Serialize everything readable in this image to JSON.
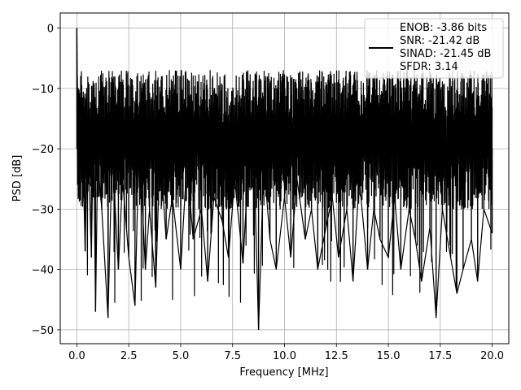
{
  "chart_data": {
    "type": "line",
    "title": "",
    "xlabel": "Frequency [MHz]",
    "ylabel": "PSD [dB]",
    "xlim": [
      -0.8,
      20.8
    ],
    "ylim": [
      -52.3,
      2.5
    ],
    "xticks": [
      0.0,
      2.5,
      5.0,
      7.5,
      10.0,
      12.5,
      15.0,
      17.5,
      20.0
    ],
    "xtick_labels": [
      "0.0",
      "2.5",
      "5.0",
      "7.5",
      "10.0",
      "12.5",
      "15.0",
      "17.5",
      "20.0"
    ],
    "yticks": [
      0,
      -10,
      -20,
      -30,
      -40,
      -50
    ],
    "ytick_labels": [
      "0",
      "−10",
      "−20",
      "−30",
      "−40",
      "−50"
    ],
    "grid": true,
    "legend_placement": "top-right",
    "series": [
      {
        "name": "ENOB: -3.86 bits\nSNR: -21.42 dB\nSINAD: -21.45 dB\nSFDR: 3.14",
        "color": "#000000",
        "x": [
          0.0,
          0.02,
          0.05,
          0.1,
          0.15,
          0.2,
          0.3,
          0.4,
          0.5,
          0.6,
          0.7,
          0.8,
          0.9,
          1.0,
          1.2,
          1.5,
          1.7,
          2.0,
          2.2,
          2.5,
          2.8,
          3.0,
          3.3,
          3.5,
          3.8,
          4.0,
          4.3,
          4.6,
          5.0,
          5.3,
          5.6,
          6.0,
          6.3,
          6.6,
          7.0,
          7.3,
          7.6,
          8.0,
          8.3,
          8.6,
          8.75,
          9.0,
          9.3,
          9.6,
          10.0,
          10.3,
          10.6,
          11.0,
          11.3,
          11.6,
          12.0,
          12.3,
          12.6,
          13.0,
          13.3,
          13.6,
          14.0,
          14.3,
          14.6,
          15.0,
          15.3,
          15.6,
          16.0,
          16.3,
          16.6,
          17.0,
          17.3,
          17.6,
          18.0,
          18.3,
          18.6,
          19.0,
          19.3,
          19.6,
          20.0
        ],
        "y": [
          0.0,
          -8.0,
          -15.0,
          -28.0,
          -12.0,
          -20.0,
          -22.0,
          -37.0,
          -18.0,
          -25.0,
          -38.0,
          -15.0,
          -47.0,
          -22.0,
          -30.0,
          -48.0,
          -20.0,
          -40.0,
          -25.0,
          -38.0,
          -46.0,
          -18.0,
          -40.0,
          -30.0,
          -43.0,
          -20.0,
          -35.0,
          -28.0,
          -40.0,
          -22.0,
          -35.0,
          -30.0,
          -42.0,
          -28.0,
          -32.0,
          -38.0,
          -25.0,
          -39.0,
          -20.0,
          -30.0,
          -50.0,
          -22.0,
          -35.0,
          -40.0,
          -28.0,
          -38.0,
          -25.0,
          -35.0,
          -30.0,
          -40.0,
          -33.0,
          -28.0,
          -38.0,
          -30.0,
          -42.0,
          -25.0,
          -40.0,
          -30.0,
          -35.0,
          -38.0,
          -28.0,
          -40.0,
          -30.0,
          -35.0,
          -42.0,
          -33.0,
          -48.0,
          -30.0,
          -38.0,
          -44.0,
          -40.0,
          -35.0,
          -42.0,
          -30.0,
          -34.0
        ]
      }
    ]
  }
}
